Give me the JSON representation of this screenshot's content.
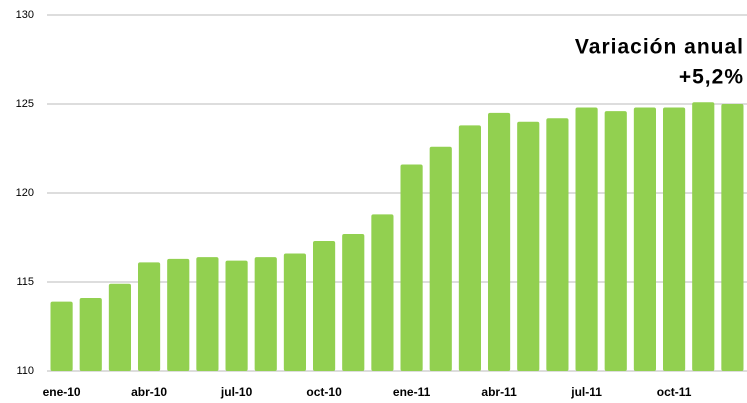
{
  "chart_data": {
    "type": "bar",
    "annotations": [
      "Variación anual",
      "+5,2%"
    ],
    "categories": [
      "ene-10",
      null,
      null,
      "abr-10",
      null,
      null,
      "jul-10",
      null,
      null,
      "oct-10",
      null,
      null,
      "ene-11",
      null,
      null,
      "abr-11",
      null,
      null,
      "jul-11",
      null,
      null,
      "oct-11",
      null,
      null
    ],
    "values": [
      113.9,
      114.1,
      114.9,
      116.1,
      116.3,
      116.4,
      116.2,
      116.4,
      116.6,
      117.3,
      117.7,
      118.8,
      121.6,
      122.6,
      123.8,
      124.5,
      124.0,
      124.2,
      124.8,
      124.6,
      124.8,
      124.8,
      125.1,
      125.0
    ],
    "color": "#92d050",
    "ylim": [
      110,
      130
    ],
    "yticks": [
      110,
      115,
      120,
      125,
      130
    ],
    "grid": true
  }
}
